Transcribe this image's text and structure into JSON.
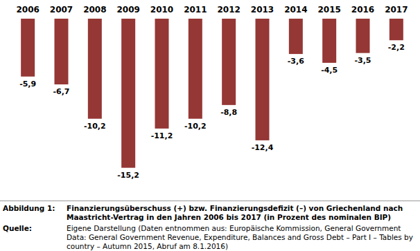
{
  "chart_data": {
    "type": "bar",
    "categories": [
      "2006",
      "2007",
      "2008",
      "2009",
      "2010",
      "2011",
      "2012",
      "2013",
      "2014",
      "2015",
      "2016",
      "2017"
    ],
    "values": [
      -5.9,
      -6.7,
      -10.2,
      -15.2,
      -11.2,
      -10.2,
      -8.8,
      -12.4,
      -3.6,
      -4.5,
      -3.5,
      -2.2
    ],
    "value_labels": [
      "-5,9",
      "-6,7",
      "-10,2",
      "-15,2",
      "-11,2",
      "-10,2",
      "-8,8",
      "-12,4",
      "-3,6",
      "-4,5",
      "-3,5",
      "-2,2"
    ],
    "color": "#953735",
    "ylim": [
      -16,
      0
    ],
    "data_labels": true,
    "tick_labels": "x"
  },
  "caption": {
    "label": "Abbildung 1:",
    "text": "Finanzierungsüberschuss (+) bzw. Finanzierungsdefizit (–) von Griechenland nach Maastricht-Vertrag in den Jahren 2006 bis 2017 (in Prozent des nominalen BIP)"
  },
  "source": {
    "label": "Quelle:",
    "text": "Eigene Darstellung (Daten entnommen aus: Europäische Kommission, General Government Data: General Government Revenue, Expenditure, Balances and Gross Debt – Part I – Tables by country – Autumn 2015, Abruf am 8.1.2016)"
  }
}
